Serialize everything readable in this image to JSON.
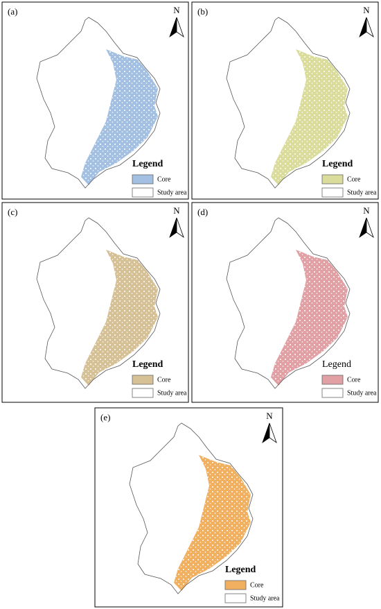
{
  "panels": [
    {
      "label": "(a)",
      "north": "N",
      "legend": {
        "title": "Legend",
        "title_bold": true,
        "items": [
          {
            "label": "Core",
            "color": "#a3c0e2"
          },
          {
            "label": "Study area",
            "color": "#ffffff"
          }
        ]
      }
    },
    {
      "label": "(b)",
      "north": "N",
      "legend": {
        "title": "Legend",
        "title_bold": true,
        "items": [
          {
            "label": "Core",
            "color": "#d9dc9a"
          },
          {
            "label": "Study area",
            "color": "#ffffff"
          }
        ]
      }
    },
    {
      "label": "(c)",
      "north": "N",
      "legend": {
        "title": "Legend",
        "title_bold": true,
        "items": [
          {
            "label": "Core",
            "color": "#d6c197"
          },
          {
            "label": "Study area",
            "color": "#ffffff"
          }
        ]
      }
    },
    {
      "label": "(d)",
      "north": "N",
      "legend": {
        "title": "Legend",
        "title_bold": false,
        "items": [
          {
            "label": "Core",
            "color": "#e0a0a4"
          },
          {
            "label": "Study area",
            "color": "#ffffff"
          }
        ]
      }
    },
    {
      "label": "(e)",
      "north": "N",
      "legend": {
        "title": "Legend",
        "title_bold": true,
        "items": [
          {
            "label": "Core",
            "color": "#f0b060"
          },
          {
            "label": "Study area",
            "color": "#ffffff"
          }
        ]
      }
    }
  ]
}
